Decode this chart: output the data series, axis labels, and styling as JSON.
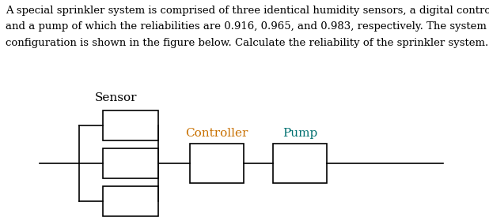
{
  "text_line1": "A special sprinkler system is comprised of three identical humidity sensors, a digital controller,",
  "text_line2": "and a pump of which the reliabilities are 0.916, 0.965, and 0.983, respectively. The system",
  "text_line3": "configuration is shown in the figure below. Calculate the reliability of the sprinkler system.",
  "sensor_label": "Sensor",
  "controller_label": "Controller",
  "pump_label": "Pump",
  "sensor_label_color": "#000000",
  "controller_label_color": "#C87000",
  "pump_label_color": "#007070",
  "box_edge_color": "#000000",
  "line_color": "#000000",
  "bg_color": "#ffffff",
  "text_color": "#000000",
  "text_fontsize": 9.5,
  "label_fontsize": 11,
  "fig_width": 6.18,
  "fig_height": 2.75,
  "dpi": 100
}
